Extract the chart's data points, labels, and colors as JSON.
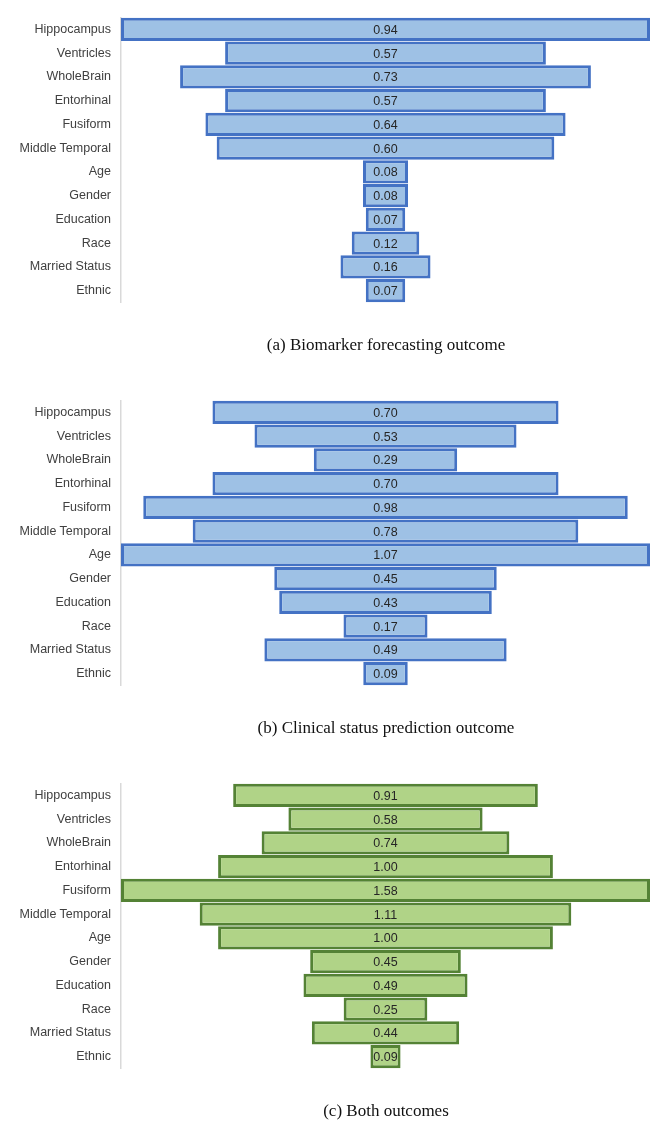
{
  "chart_data": [
    {
      "type": "other",
      "categories": [
        "Hippocampus",
        "Ventricles",
        "WholeBrain",
        "Entorhinal",
        "Fusiform",
        "Middle Temporal",
        "Age",
        "Gender",
        "Education",
        "Race",
        "Married Status",
        "Ethnic"
      ],
      "values": [
        0.94,
        0.57,
        0.73,
        0.57,
        0.64,
        0.6,
        0.08,
        0.08,
        0.07,
        0.12,
        0.16,
        0.07
      ],
      "value_labels": [
        "0.94",
        "0.57",
        "0.73",
        "0.57",
        "0.64",
        "0.60",
        "0.08",
        "0.08",
        "0.07",
        "0.12",
        "0.16",
        "0.07"
      ],
      "color": "#4472c4",
      "annotations": [
        "(a) Biomarker forecasting outcome"
      ]
    },
    {
      "type": "other",
      "categories": [
        "Hippocampus",
        "Ventricles",
        "WholeBrain",
        "Entorhinal",
        "Fusiform",
        "Middle Temporal",
        "Age",
        "Gender",
        "Education",
        "Race",
        "Married Status",
        "Ethnic"
      ],
      "values": [
        0.7,
        0.53,
        0.29,
        0.7,
        0.98,
        0.78,
        1.07,
        0.45,
        0.43,
        0.17,
        0.49,
        0.09
      ],
      "value_labels": [
        "0.70",
        "0.53",
        "0.29",
        "0.70",
        "0.98",
        "0.78",
        "1.07",
        "0.45",
        "0.43",
        "0.17",
        "0.49",
        "0.09"
      ],
      "color": "#4472c4",
      "annotations": [
        "(b) Clinical status prediction outcome"
      ]
    },
    {
      "type": "other",
      "categories": [
        "Hippocampus",
        "Ventricles",
        "WholeBrain",
        "Entorhinal",
        "Fusiform",
        "Middle Temporal",
        "Age",
        "Gender",
        "Education",
        "Race",
        "Married Status",
        "Ethnic"
      ],
      "values": [
        0.91,
        0.58,
        0.74,
        1.0,
        1.58,
        1.11,
        1.0,
        0.45,
        0.49,
        0.25,
        0.44,
        0.09
      ],
      "value_labels": [
        "0.91",
        "0.58",
        "0.74",
        "1.00",
        "1.58",
        "1.11",
        "1.00",
        "0.45",
        "0.49",
        "0.25",
        "0.44",
        "0.09"
      ],
      "color": "#548235",
      "annotations": [
        "(c) Both outcomes"
      ]
    }
  ]
}
